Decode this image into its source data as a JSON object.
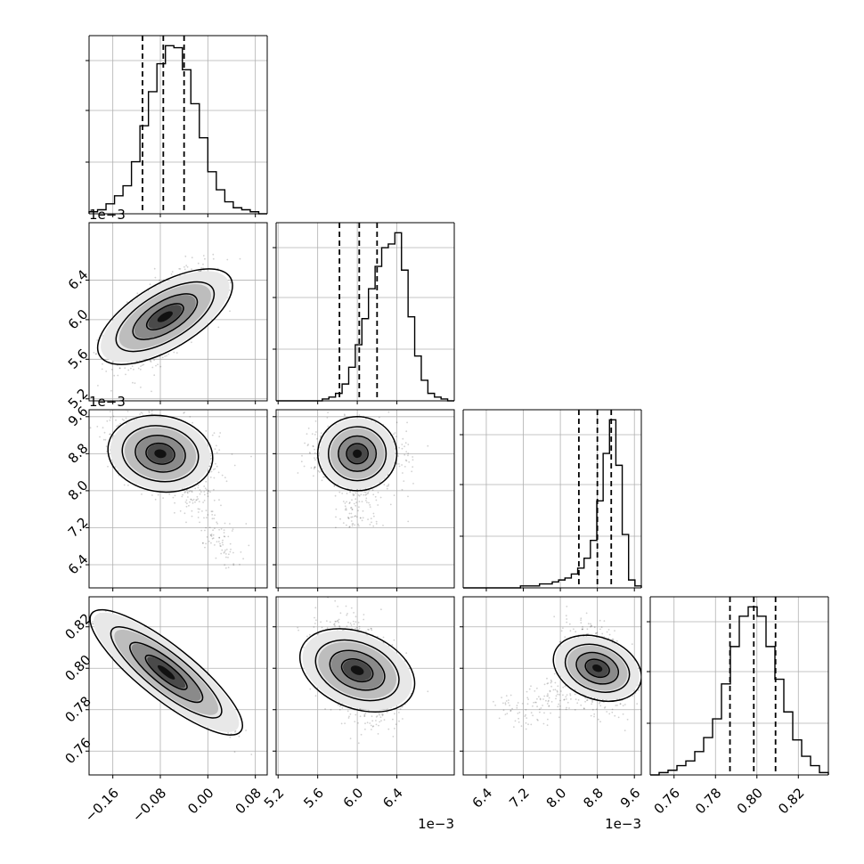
{
  "chart_data": {
    "type": "corner",
    "params": [
      {
        "range": [
          -0.2,
          0.1
        ],
        "ticks": [
          -0.16,
          -0.08,
          0.0,
          0.08
        ],
        "tick_labels": [
          "−0.16",
          "−0.08",
          "0.00",
          "0.08"
        ],
        "offset_label": "",
        "quantiles": [
          -0.11,
          -0.075,
          -0.04
        ]
      },
      {
        "range": [
          5.18,
          6.98
        ],
        "ticks": [
          5.2,
          5.6,
          6.0,
          6.4
        ],
        "tick_labels": [
          "5.2",
          "5.6",
          "6.0",
          "6.4"
        ],
        "offset_label": "1e−3",
        "quantiles": [
          5.82,
          6.02,
          6.2
        ]
      },
      {
        "range": [
          5.9,
          9.75
        ],
        "ticks": [
          6.4,
          7.2,
          8.0,
          8.8,
          9.6
        ],
        "tick_labels": [
          "6.4",
          "7.2",
          "8.0",
          "8.8",
          "9.6"
        ],
        "offset_label": "1e−3",
        "quantiles": [
          8.4,
          8.8,
          9.1
        ]
      },
      {
        "range": [
          0.7485,
          0.8345
        ],
        "ticks": [
          0.76,
          0.78,
          0.8,
          0.82
        ],
        "tick_labels": [
          "0.76",
          "0.78",
          "0.80",
          "0.82"
        ],
        "offset_label": "",
        "quantiles": [
          0.787,
          0.7985,
          0.809
        ]
      }
    ],
    "histograms": [
      {
        "counts": [
          1,
          2,
          5,
          9,
          14,
          26,
          44,
          61,
          75,
          84,
          83,
          72,
          55,
          38,
          21,
          12,
          6,
          3,
          2,
          1,
          0
        ]
      },
      {
        "counts": [
          0,
          0,
          0,
          0,
          0,
          0,
          0,
          1,
          2,
          4,
          9,
          18,
          30,
          44,
          60,
          72,
          82,
          84,
          90,
          70,
          45,
          24,
          11,
          4,
          2,
          1,
          0
        ]
      },
      {
        "counts": [
          0,
          0,
          0,
          0,
          0,
          0,
          0,
          0,
          0,
          1,
          1,
          1,
          2,
          2,
          3,
          4,
          5,
          7,
          10,
          15,
          24,
          44,
          68,
          85,
          62,
          27,
          4,
          1
        ]
      },
      {
        "counts": [
          0,
          1,
          2,
          4,
          6,
          10,
          16,
          24,
          39,
          55,
          68,
          72,
          68,
          55,
          41,
          27,
          15,
          8,
          4,
          1
        ]
      }
    ],
    "scatter": [
      {
        "pair": [
          1,
          0
        ],
        "mean": [
          -0.072,
          6.03
        ],
        "sd": [
          0.04,
          0.22
        ],
        "corr": 0.65
      },
      {
        "pair": [
          2,
          0
        ],
        "mean": [
          -0.08,
          8.8
        ],
        "sd": [
          0.04,
          0.35
        ],
        "corr": -0.25,
        "tail": true
      },
      {
        "pair": [
          2,
          1
        ],
        "mean": [
          6.0,
          8.8
        ],
        "sd": [
          0.2,
          0.32
        ],
        "corr": 0.05,
        "tail": true
      },
      {
        "pair": [
          3,
          0
        ],
        "mean": [
          -0.07,
          0.798
        ],
        "sd": [
          0.045,
          0.011
        ],
        "corr": -0.93
      },
      {
        "pair": [
          3,
          1
        ],
        "mean": [
          6.0,
          0.799
        ],
        "sd": [
          0.2,
          0.011
        ],
        "corr": -0.35
      },
      {
        "pair": [
          3,
          2
        ],
        "mean": [
          8.8,
          0.8
        ],
        "sd": [
          0.32,
          0.009
        ],
        "corr": -0.3,
        "tail": true
      }
    ],
    "grid": true,
    "colors": {
      "line": "#000000",
      "grid": "#b0b0b0",
      "points": "#000000",
      "fill_dark": "#000000",
      "fill_light": "#e6e6e6"
    }
  }
}
